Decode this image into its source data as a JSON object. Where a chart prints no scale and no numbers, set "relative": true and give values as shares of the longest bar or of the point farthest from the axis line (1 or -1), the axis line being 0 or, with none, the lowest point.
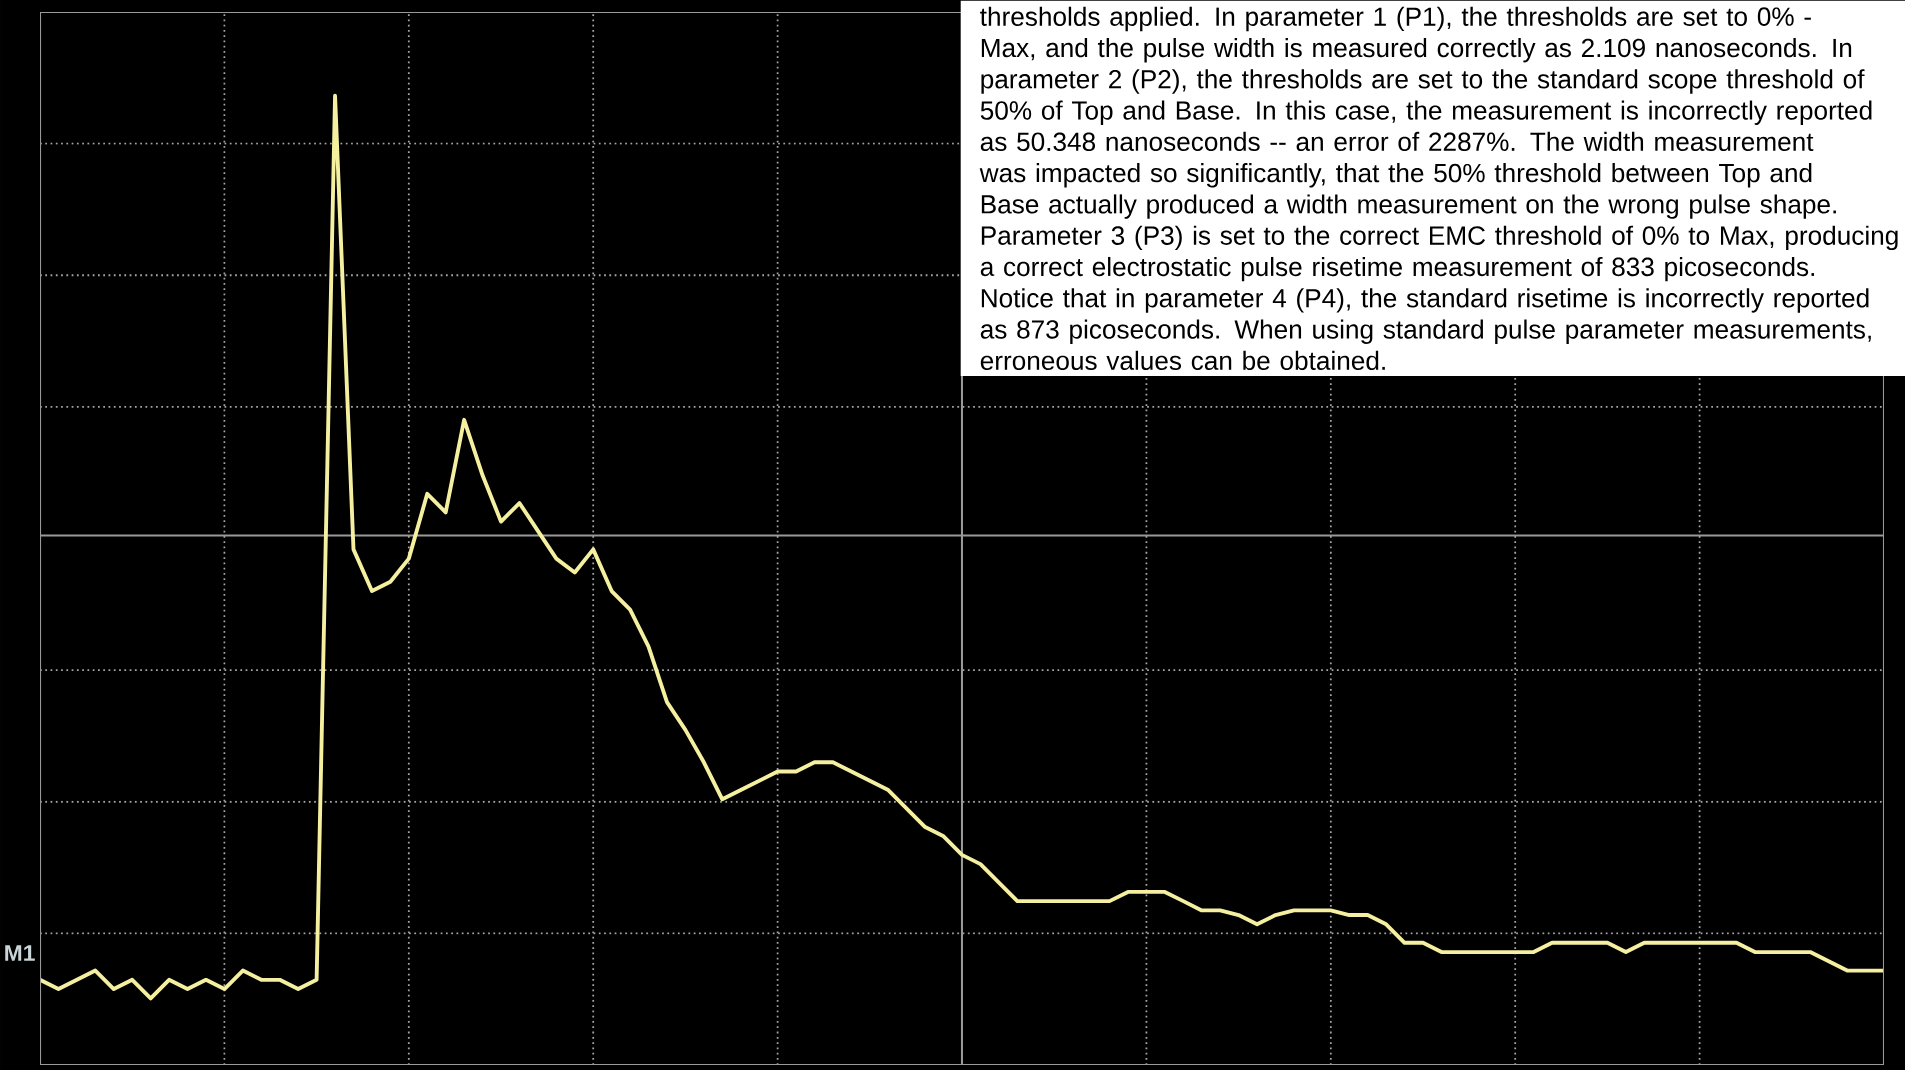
{
  "chart_data": {
    "type": "line",
    "relative": true,
    "grid": true,
    "categories": [
      null,
      null,
      null,
      null,
      null,
      null,
      null,
      null,
      null,
      null,
      null,
      null,
      null,
      null,
      null,
      null,
      null,
      null,
      null,
      null,
      null,
      null,
      null,
      null,
      null,
      null,
      null,
      null,
      null,
      null,
      null,
      null,
      null,
      null,
      null,
      null,
      null,
      null,
      null,
      null,
      null,
      null,
      null,
      null,
      null,
      null,
      null,
      null,
      null,
      null,
      null,
      null,
      null,
      null,
      null,
      null,
      null,
      null,
      null,
      null,
      null,
      null,
      null,
      null,
      null,
      null,
      null,
      null,
      null,
      null,
      null,
      null,
      null,
      null,
      null,
      null,
      null,
      null,
      null,
      null,
      null,
      null,
      null,
      null,
      null,
      null,
      null,
      null,
      null,
      null,
      null,
      null,
      null,
      null,
      null,
      null,
      null,
      null,
      null,
      null,
      null
    ],
    "series": [
      {
        "color": "#f5f0a0",
        "values": [
          -0.96,
          -0.98,
          -0.96,
          -0.94,
          -0.98,
          -0.96,
          -1.0,
          -0.96,
          -0.98,
          -0.96,
          -0.98,
          -0.94,
          -0.96,
          -0.96,
          -0.98,
          -0.96,
          0.95,
          -0.03,
          -0.12,
          -0.1,
          -0.05,
          0.09,
          0.05,
          0.25,
          0.13,
          0.03,
          0.07,
          0.01,
          -0.05,
          -0.08,
          -0.03,
          -0.12,
          -0.16,
          -0.24,
          -0.36,
          -0.42,
          -0.49,
          -0.57,
          -0.55,
          -0.53,
          -0.51,
          -0.51,
          -0.49,
          -0.49,
          -0.51,
          -0.53,
          -0.55,
          -0.59,
          -0.63,
          -0.65,
          -0.69,
          -0.71,
          -0.75,
          -0.79,
          -0.79,
          -0.79,
          -0.79,
          -0.79,
          -0.79,
          -0.77,
          -0.77,
          -0.77,
          -0.79,
          -0.81,
          -0.81,
          -0.82,
          -0.84,
          -0.82,
          -0.81,
          -0.81,
          -0.81,
          -0.82,
          -0.82,
          -0.84,
          -0.88,
          -0.88,
          -0.9,
          -0.9,
          -0.9,
          -0.9,
          -0.9,
          -0.9,
          -0.88,
          -0.88,
          -0.88,
          -0.88,
          -0.9,
          -0.88,
          -0.88,
          -0.88,
          -0.88,
          -0.88,
          -0.88,
          -0.9,
          -0.9,
          -0.9,
          -0.9,
          -0.92,
          -0.94,
          -0.94,
          -0.94
        ]
      }
    ],
    "annotations": [
      "M1",
      "thresholds applied. In parameter 1 (P1), the thresholds are set to 0% - Max, and the pulse width is measured correctly as 2.109 nanoseconds. In parameter 2 (P2), the thresholds are set to the standard scope threshold of 50% of Top and Base. In this case, the measurement is incorrectly reported as 50.348 nanoseconds -- an error of 2287%. The width measurement was impacted so significantly, that the 50% threshold between Top and Base actually produced a width measurement on the wrong pulse shape. Parameter 3 (P3) is set to the correct EMC threshold of 0% to Max, producing a correct electrostatic pulse risetime measurement of 833 picoseconds. Notice that in parameter 4 (P4), the standard risetime is incorrectly reported as 873 picoseconds. When using standard pulse parameter measurements, erroneous values can be obtained."
    ]
  }
}
